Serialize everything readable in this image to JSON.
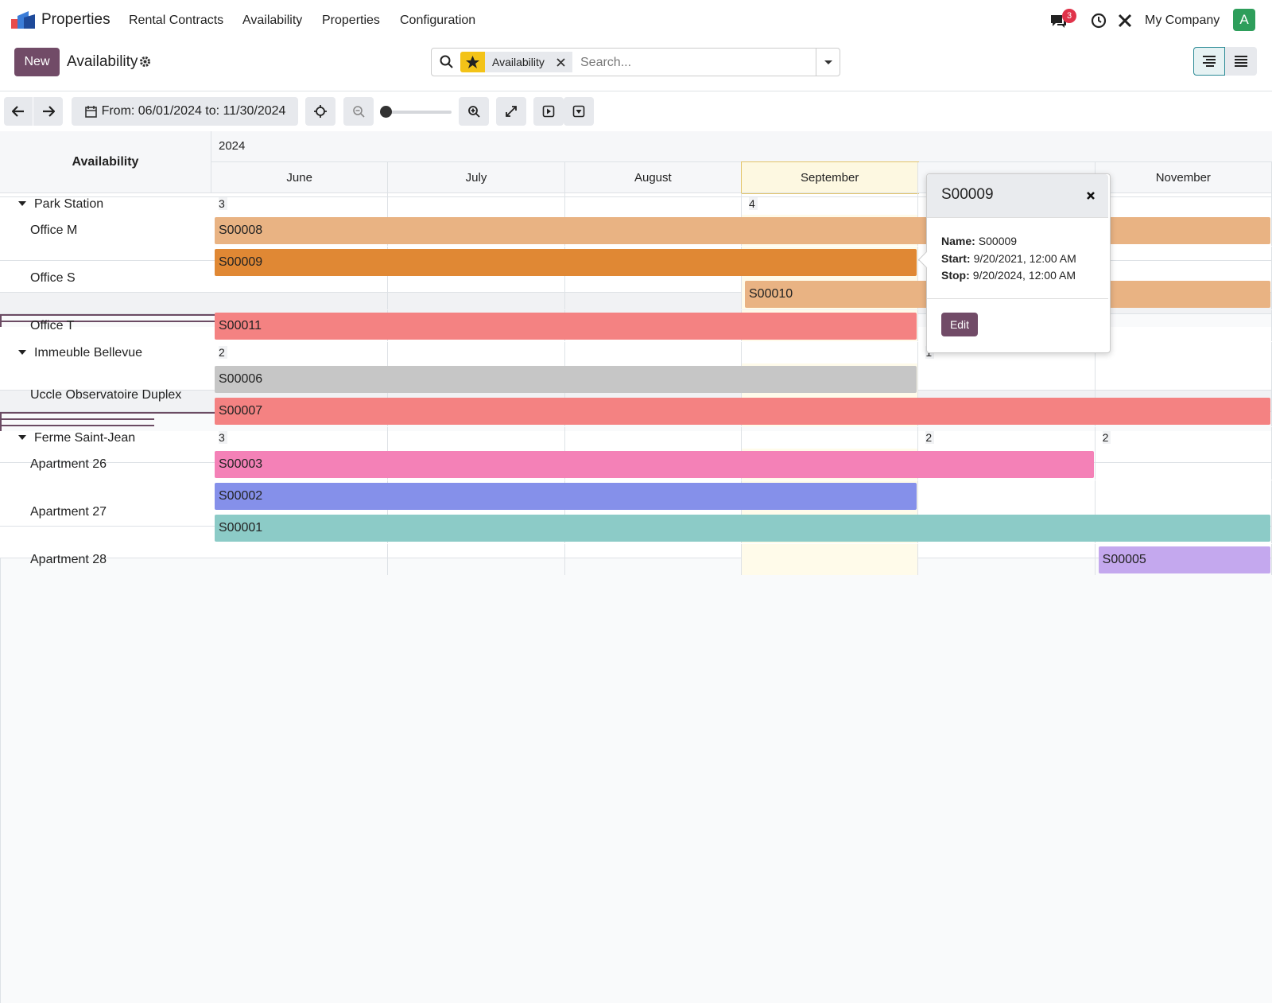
{
  "navbar": {
    "app": "Properties",
    "menu": [
      "Rental Contracts",
      "Availability",
      "Properties",
      "Configuration"
    ],
    "badge": "3",
    "company": "My Company",
    "avatar": "A"
  },
  "control": {
    "new": "New",
    "title": "Availability",
    "facet": "Availability",
    "search_placeholder": "Search..."
  },
  "toolbar": {
    "range": "From: 06/01/2024 to: 11/30/2024"
  },
  "gantt": {
    "header": "Availability",
    "year": "2024",
    "months": [
      "June",
      "July",
      "August",
      "September",
      "November"
    ],
    "groups": [
      {
        "name": "Park Station",
        "counts": [
          3,
          4
        ],
        "rows": [
          {
            "label": "Office M",
            "pills": [
              {
                "name": "S00008",
                "color": "#e9b383"
              }
            ]
          },
          {
            "label": "Office S",
            "pills": [
              {
                "name": "S00009",
                "color": "#e08834"
              },
              {
                "name": "S00010",
                "color": "#e9b383"
              }
            ]
          },
          {
            "label": "Office T",
            "pills": [
              {
                "name": "S00011",
                "color": "#f48282"
              }
            ]
          }
        ]
      },
      {
        "name": "Immeuble Bellevue",
        "counts": [
          2,
          1
        ],
        "rows": [
          {
            "label": "Uccle Observatoire Duplex",
            "pills": [
              {
                "name": "S00006",
                "color": "#c6c6c6"
              },
              {
                "name": "S00007",
                "color": "#f48282"
              }
            ]
          }
        ]
      },
      {
        "name": "Ferme Saint-Jean",
        "counts": [
          3,
          2,
          2
        ],
        "rows": [
          {
            "label": "Apartment 26",
            "pills": [
              {
                "name": "S00003",
                "color": "#f481b7"
              }
            ]
          },
          {
            "label": "Apartment 27",
            "pills": [
              {
                "name": "S00002",
                "color": "#8590ea"
              },
              {
                "name": "S00001",
                "color": "#8ccbc7"
              }
            ]
          },
          {
            "label": "Apartment 28",
            "pills": [
              {
                "name": "S00005",
                "color": "#c4a8ee"
              }
            ]
          }
        ]
      }
    ]
  },
  "popover": {
    "title": "S00009",
    "fields": [
      {
        "label": "Name:",
        "value": "S00009"
      },
      {
        "label": "Start:",
        "value": "9/20/2021, 12:00 AM"
      },
      {
        "label": "Stop:",
        "value": "9/20/2024, 12:00 AM"
      }
    ],
    "edit": "Edit"
  }
}
